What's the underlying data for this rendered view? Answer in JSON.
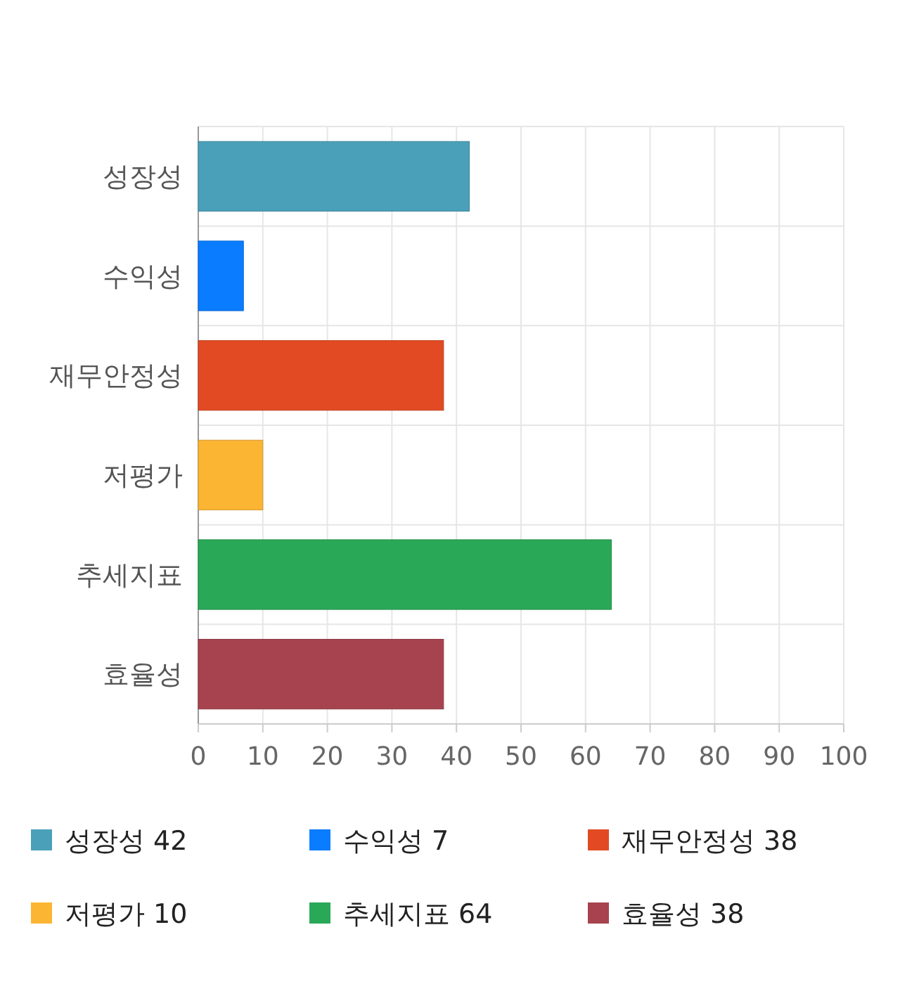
{
  "chart_data": {
    "type": "bar",
    "orientation": "horizontal",
    "stacked": true,
    "categories": [
      "성장성",
      "수익성",
      "재무안정성",
      "저평가",
      "추세지표",
      "효율성"
    ],
    "series": [
      {
        "name": "성장성 42",
        "color": "#4aa0b9",
        "values": [
          42,
          null,
          null,
          null,
          null,
          null
        ]
      },
      {
        "name": "수익성 7",
        "color": "#0a7cff",
        "values": [
          null,
          7,
          null,
          null,
          null,
          null
        ]
      },
      {
        "name": "재무안정성 38",
        "color": "#e24a24",
        "values": [
          null,
          null,
          38,
          null,
          null,
          null
        ]
      },
      {
        "name": "저평가 10",
        "color": "#fbb533",
        "values": [
          null,
          null,
          null,
          10,
          null,
          null
        ]
      },
      {
        "name": "추세지표 64",
        "color": "#29a857",
        "values": [
          null,
          null,
          null,
          null,
          64,
          null
        ]
      },
      {
        "name": "효율성 38",
        "color": "#a6434f",
        "values": [
          null,
          null,
          null,
          null,
          null,
          38
        ]
      }
    ],
    "xlim": [
      0,
      100
    ],
    "xticks": [
      0,
      10,
      20,
      30,
      40,
      50,
      60,
      70,
      80,
      90,
      100
    ],
    "grid": true,
    "legend": "bottom"
  }
}
